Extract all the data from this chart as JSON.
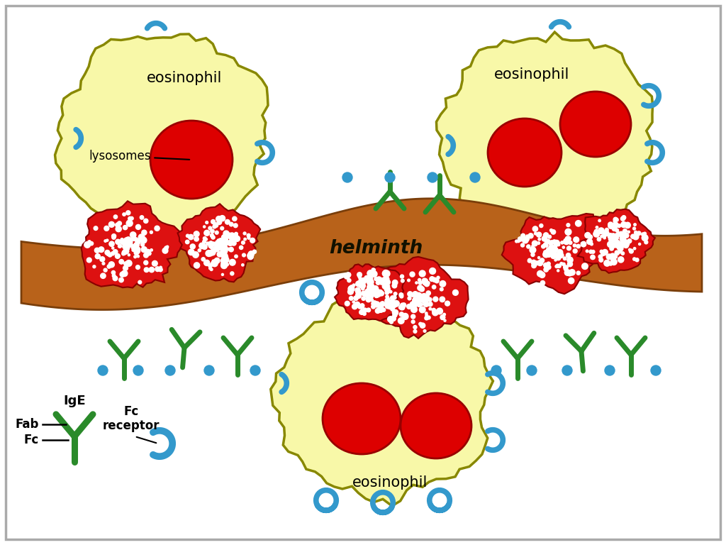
{
  "bg_color": "#ffffff",
  "border_color": "#aaaaaa",
  "cell_color": "#f8f8a8",
  "cell_outline": "#888800",
  "nucleus_color": "#dd0000",
  "nucleus_outline": "#990000",
  "helminth_color": "#b8621a",
  "helminth_outline": "#7a3e0a",
  "antibody_color": "#2a8a2a",
  "receptor_color": "#3399cc",
  "speckle_red": "#dd1111",
  "text_color": "#000000",
  "helminth_label": "helminth",
  "label_eosinophil": "eosinophil",
  "label_lysosomes": "lysosomes",
  "label_fab": "Fab",
  "label_fc": "Fc",
  "label_ige": "IgE",
  "label_fc_receptor": "Fc\nreceptor"
}
